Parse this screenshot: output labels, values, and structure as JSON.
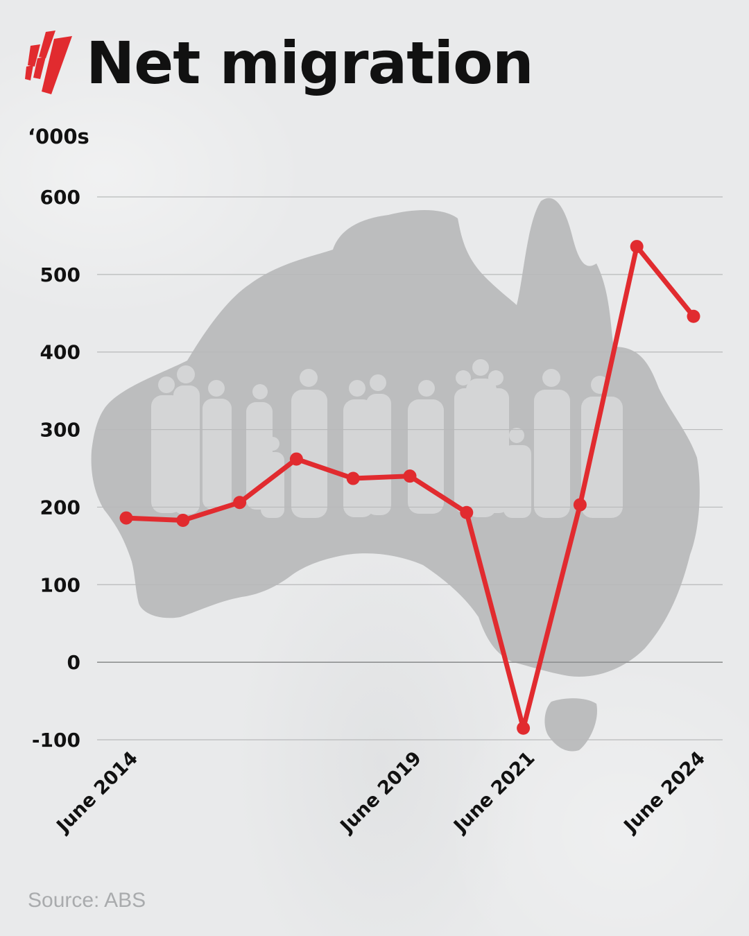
{
  "header": {
    "title": "Net migration",
    "logo_icon": "sbs-logo-icon"
  },
  "colors": {
    "background": "#e9eaeb",
    "line": "#e12b2f",
    "map": "#bcbdbe",
    "grid": "#b8b9ba"
  },
  "chart_data": {
    "type": "line",
    "title": "Net migration",
    "ylabel": "‘000s",
    "xlabel": "",
    "ylim": [
      -100,
      600
    ],
    "yticks": [
      "600",
      "500",
      "400",
      "300",
      "200",
      "100",
      "0",
      "-100"
    ],
    "ytick_values": [
      600,
      500,
      400,
      300,
      200,
      100,
      0,
      -100
    ],
    "xtick_labels": [
      {
        "index": 0,
        "label": "June 2014"
      },
      {
        "index": 5,
        "label": "June 2019"
      },
      {
        "index": 7,
        "label": "June 2021"
      },
      {
        "index": 10,
        "label": "June 2024"
      }
    ],
    "grid": true,
    "series": [
      {
        "values": [
          186,
          183,
          206,
          262,
          237,
          240,
          193,
          -85,
          203,
          536,
          446
        ]
      }
    ]
  },
  "footer": {
    "source": "Source: ABS"
  }
}
